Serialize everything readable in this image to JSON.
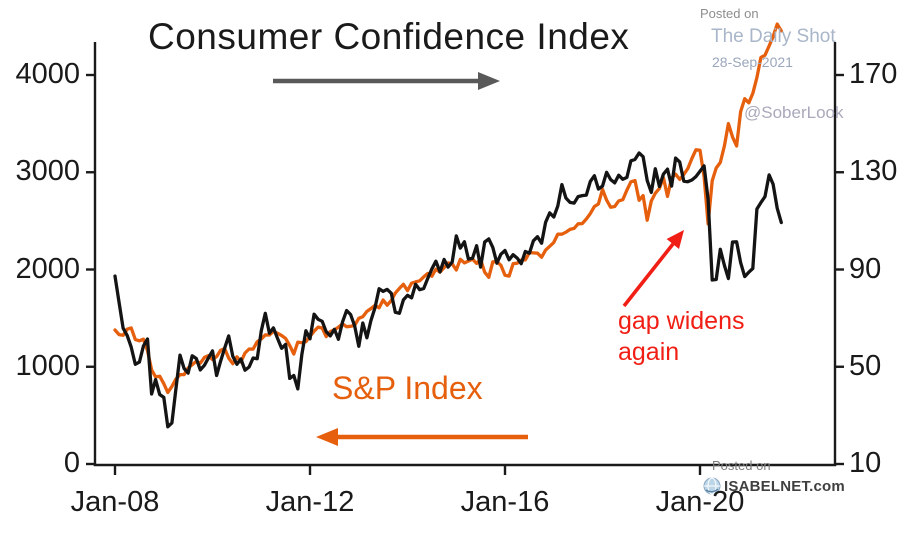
{
  "title": "Consumer Confidence Index",
  "annotations": {
    "sp_label": "S&P Index",
    "gap_label": "gap widens\nagain"
  },
  "watermarks": {
    "posted_on_top": "Posted on",
    "daily_shot": "The Daily Shot",
    "date": "28-Sep-2021",
    "soberlook": "@SoberLook",
    "posted_on_bottom": "Posted on",
    "isabelnet": "ISABELNET.com"
  },
  "icons": {
    "isabelnet_globe": "globe-icon"
  },
  "colors": {
    "sp_orange": "#e55f0d",
    "confidence_black": "#141414",
    "annotation_red": "#f01e14",
    "title_arrow_gray": "#595959",
    "axis_black": "#1a1a1a"
  },
  "chart_data": {
    "type": "line",
    "title": "Consumer Confidence Index",
    "x_start": 2008.0,
    "x_interval_months": 1,
    "x_tick_labels": [
      "Jan-08",
      "Jan-12",
      "Jan-16",
      "Jan-20"
    ],
    "x_tick_values": [
      2008,
      2012,
      2016,
      2020
    ],
    "left_axis": {
      "series_label": "S&P Index",
      "ticks": [
        0,
        1000,
        2000,
        3000,
        4000
      ],
      "range": [
        0,
        4600
      ]
    },
    "right_axis": {
      "series_label": "Consumer Confidence Index",
      "ticks": [
        10,
        50,
        90,
        130,
        170
      ],
      "range": [
        10,
        170
      ]
    },
    "grid": false,
    "legend": "in-chart annotations with arrows",
    "series": [
      {
        "name": "S&P Index",
        "axis": "left",
        "color": "#e55f0d",
        "values": [
          1378,
          1331,
          1323,
          1386,
          1400,
          1280,
          1267,
          1283,
          1166,
          969,
          896,
          903,
          826,
          735,
          798,
          873,
          919,
          919,
          987,
          1021,
          1057,
          1036,
          1096,
          1115,
          1074,
          1104,
          1169,
          1187,
          1089,
          1031,
          1102,
          1049,
          1141,
          1183,
          1181,
          1258,
          1286,
          1327,
          1326,
          1364,
          1345,
          1321,
          1292,
          1219,
          1131,
          1253,
          1247,
          1258,
          1312,
          1366,
          1408,
          1398,
          1310,
          1362,
          1379,
          1407,
          1441,
          1412,
          1416,
          1426,
          1498,
          1515,
          1569,
          1598,
          1631,
          1606,
          1686,
          1633,
          1682,
          1757,
          1806,
          1848,
          1783,
          1859,
          1872,
          1884,
          1924,
          1960,
          1931,
          2003,
          1972,
          2018,
          2068,
          2059,
          1995,
          2105,
          2068,
          2086,
          2107,
          2063,
          2104,
          1972,
          1920,
          2079,
          2080,
          2044,
          1940,
          1932,
          2060,
          2065,
          2097,
          2099,
          2174,
          2171,
          2168,
          2126,
          2199,
          2239,
          2279,
          2364,
          2363,
          2384,
          2412,
          2423,
          2470,
          2472,
          2519,
          2575,
          2648,
          2674,
          2824,
          2714,
          2641,
          2648,
          2705,
          2718,
          2816,
          2902,
          2914,
          2712,
          2760,
          2507,
          2704,
          2785,
          2834,
          2946,
          2752,
          2942,
          2980,
          2926,
          2977,
          3038,
          3141,
          3231,
          3226,
          2954,
          2470,
          2912,
          3044,
          3100,
          3271,
          3500,
          3363,
          3270,
          3622,
          3756,
          3714,
          3811,
          3973,
          4181,
          4204,
          4298,
          4395,
          4523,
          4455
        ]
      },
      {
        "name": "Consumer Confidence Index",
        "axis": "right",
        "color": "#141414",
        "values": [
          87.3,
          76.4,
          65.9,
          62.8,
          58.1,
          51.0,
          51.9,
          58.5,
          61.4,
          38.8,
          44.7,
          38.6,
          37.4,
          25.3,
          26.9,
          40.8,
          54.8,
          49.3,
          47.4,
          54.5,
          53.4,
          48.7,
          50.6,
          53.6,
          56.5,
          46.4,
          52.3,
          57.7,
          62.7,
          54.3,
          51.0,
          53.2,
          48.6,
          49.9,
          53.6,
          53.3,
          64.8,
          72.0,
          63.8,
          66.0,
          61.7,
          57.6,
          59.2,
          45.2,
          46.4,
          40.9,
          55.2,
          64.8,
          61.5,
          71.6,
          69.5,
          68.7,
          64.4,
          62.7,
          65.4,
          61.3,
          68.4,
          73.1,
          71.5,
          66.7,
          58.4,
          68.0,
          61.9,
          69.0,
          74.3,
          82.1,
          81.0,
          81.8,
          80.2,
          72.4,
          72.0,
          77.5,
          79.4,
          78.3,
          83.9,
          81.7,
          82.2,
          86.4,
          90.3,
          93.4,
          89.0,
          94.1,
          91.0,
          93.1,
          103.8,
          98.8,
          101.4,
          94.3,
          94.6,
          99.8,
          91.0,
          101.3,
          102.6,
          99.1,
          92.6,
          96.3,
          97.8,
          94.0,
          96.1,
          94.7,
          92.4,
          97.4,
          96.7,
          101.8,
          103.5,
          100.8,
          109.4,
          113.3,
          111.6,
          116.1,
          124.9,
          119.4,
          117.6,
          117.3,
          120.0,
          120.4,
          120.6,
          126.2,
          128.6,
          123.1,
          124.3,
          130.0,
          127.0,
          125.6,
          128.8,
          127.1,
          127.9,
          134.7,
          135.3,
          137.9,
          136.4,
          126.6,
          121.7,
          131.4,
          124.2,
          129.2,
          131.3,
          124.3,
          135.8,
          134.2,
          126.3,
          126.1,
          126.8,
          128.2,
          130.4,
          132.6,
          118.8,
          85.7,
          85.9,
          98.3,
          91.7,
          86.3,
          101.3,
          101.4,
          92.9,
          87.1,
          88.9,
          90.4,
          114.9,
          117.5,
          120.0,
          128.9,
          125.1,
          115.2,
          109.3
        ]
      }
    ]
  }
}
